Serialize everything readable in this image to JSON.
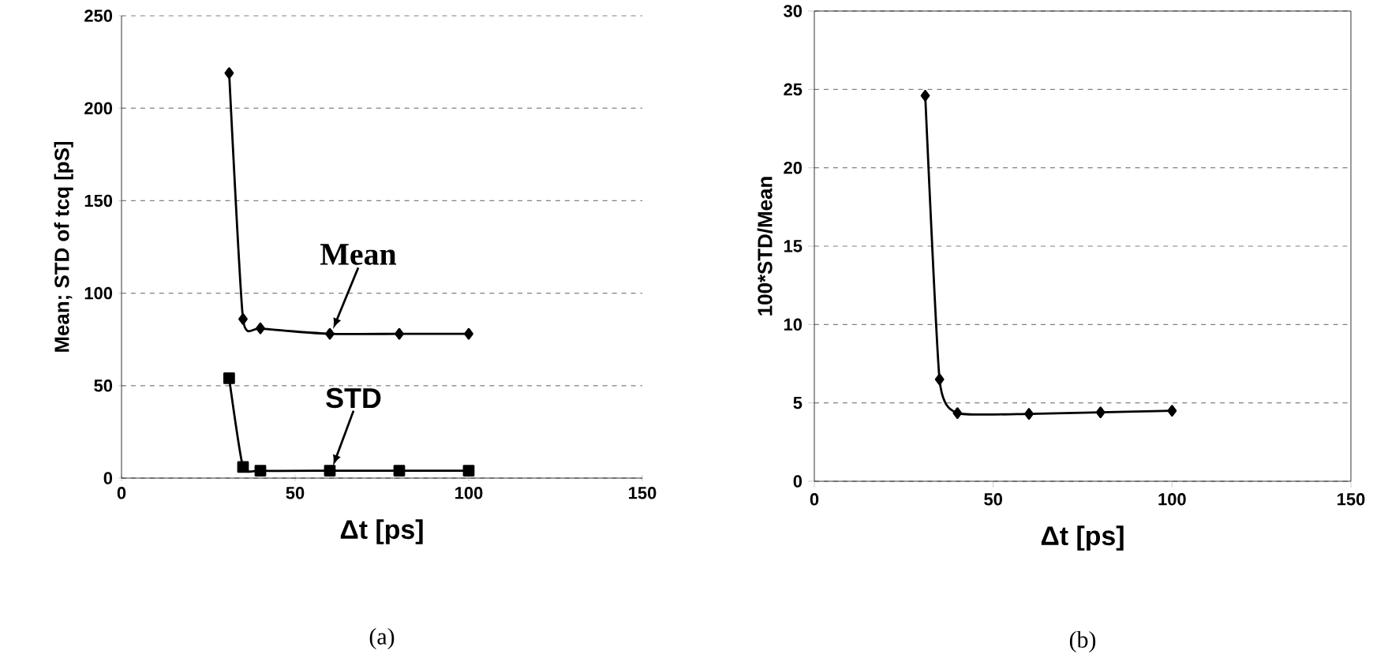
{
  "chart_data": [
    {
      "type": "line",
      "xlabel": "Δt [ps]",
      "ylabel": "Mean; STD of tcq [pS]",
      "x": [
        31,
        35,
        40,
        60,
        80,
        100
      ],
      "xlim": [
        0,
        150
      ],
      "xticks": [
        0,
        50,
        100,
        150
      ],
      "ylim": [
        0,
        250
      ],
      "yticks": [
        0,
        50,
        100,
        150,
        200,
        250
      ],
      "grid": "y",
      "annotations": [
        "(a)"
      ],
      "series": [
        {
          "name": "Mean",
          "color": "#000000",
          "marker": "diamond",
          "values": [
            219,
            86,
            81,
            78,
            78,
            78
          ]
        },
        {
          "name": "STD",
          "color": "#000000",
          "marker": "square",
          "values": [
            54,
            6,
            4,
            4,
            4,
            4
          ]
        }
      ]
    },
    {
      "type": "line",
      "xlabel": "Δt [ps]",
      "ylabel": "100*STD/Mean",
      "x": [
        31,
        35,
        40,
        60,
        80,
        100
      ],
      "xlim": [
        0,
        150
      ],
      "xticks": [
        0,
        50,
        100,
        150
      ],
      "ylim": [
        0,
        30
      ],
      "yticks": [
        0,
        5,
        10,
        15,
        20,
        25,
        30
      ],
      "grid": "y",
      "annotations": [
        "(b)"
      ],
      "series": [
        {
          "color": "#000000",
          "marker": "diamond",
          "values": [
            24.6,
            6.5,
            4.35,
            4.3,
            4.4,
            4.5
          ]
        }
      ]
    }
  ]
}
